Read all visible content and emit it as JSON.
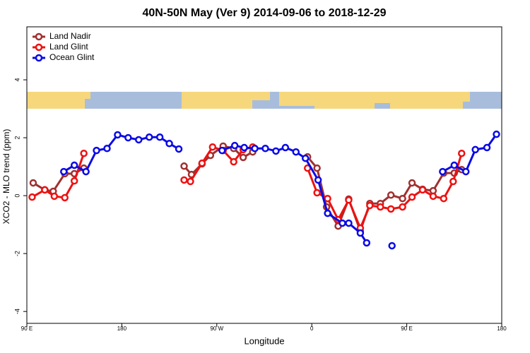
{
  "chart_data": {
    "type": "line",
    "title": "40N-50N May (Ver 9)   2014-09-06 to 2018-12-29",
    "xlabel": "Longitude",
    "ylabel": "XCO2 - MLO trend (ppm)",
    "xlim": [
      90,
      540
    ],
    "xticks": [
      {
        "value": 90,
        "label": "90 E"
      },
      180,
      {
        "value": 270,
        "label": "90 W"
      },
      {
        "value": 360,
        "label": "0"
      },
      {
        "value": 450,
        "label": "90 E"
      },
      {
        "value": 540,
        "label": "180"
      }
    ],
    "ylim": [
      -4.41,
      5.83
    ],
    "yticks": [
      -4,
      -2,
      0,
      2,
      4
    ],
    "legend": "upper left",
    "series": [
      {
        "name": "Land Nadir",
        "color": "#a03030",
        "x": [
          96,
          107,
          115,
          126,
          135,
          144,
          null,
          239,
          246,
          256,
          264,
          276,
          286,
          295,
          304,
          null,
          356,
          365,
          374,
          385,
          395,
          406,
          415,
          425,
          435,
          446,
          455,
          465,
          475,
          485,
          495,
          502
        ],
        "values": [
          0.44,
          0.2,
          0.15,
          0.76,
          0.76,
          0.95,
          null,
          1.02,
          0.73,
          1.1,
          1.39,
          1.71,
          1.63,
          1.32,
          1.51,
          null,
          1.34,
          0.95,
          -0.39,
          -1.05,
          -0.12,
          -1.22,
          -0.27,
          -0.27,
          0.02,
          -0.1,
          0.44,
          0.22,
          0.17,
          0.78,
          0.78,
          0.9
        ]
      },
      {
        "name": "Land Glint",
        "color": "#ee1111",
        "x": [
          95,
          107,
          116,
          126,
          135,
          144,
          null,
          239,
          245,
          256,
          266,
          276,
          286,
          295,
          304,
          null,
          356,
          365,
          375,
          385,
          395,
          406,
          415,
          425,
          435,
          446,
          455,
          465,
          475,
          485,
          494,
          502
        ],
        "values": [
          -0.05,
          0.2,
          -0.02,
          -0.07,
          0.51,
          1.46,
          null,
          0.54,
          0.49,
          1.12,
          1.68,
          1.56,
          1.17,
          1.59,
          1.68,
          null,
          0.95,
          0.1,
          -0.1,
          -0.83,
          -0.15,
          -1.12,
          -0.34,
          -0.39,
          -0.46,
          -0.39,
          -0.05,
          0.2,
          -0.02,
          -0.1,
          0.49,
          1.46
        ]
      },
      {
        "name": "Ocean Glint",
        "color": "#0a0ae6",
        "x": [
          125,
          135,
          146,
          156,
          166,
          176,
          186,
          196,
          206,
          216,
          225,
          234,
          null,
          275,
          287,
          296,
          306,
          316,
          326,
          335,
          345,
          354,
          366,
          375,
          389,
          395,
          406,
          412,
          null,
          436,
          null,
          484,
          495,
          506,
          515,
          526,
          535
        ],
        "values": [
          0.83,
          1.05,
          0.83,
          1.56,
          1.63,
          2.1,
          2.0,
          1.93,
          2.02,
          2.02,
          1.8,
          1.61,
          null,
          1.56,
          1.73,
          1.66,
          1.63,
          1.63,
          1.54,
          1.66,
          1.51,
          1.29,
          0.54,
          -0.61,
          -0.95,
          -0.95,
          -1.29,
          -1.63,
          null,
          -1.73,
          null,
          0.83,
          1.05,
          0.83,
          1.59,
          1.66,
          2.12
        ]
      }
    ]
  }
}
